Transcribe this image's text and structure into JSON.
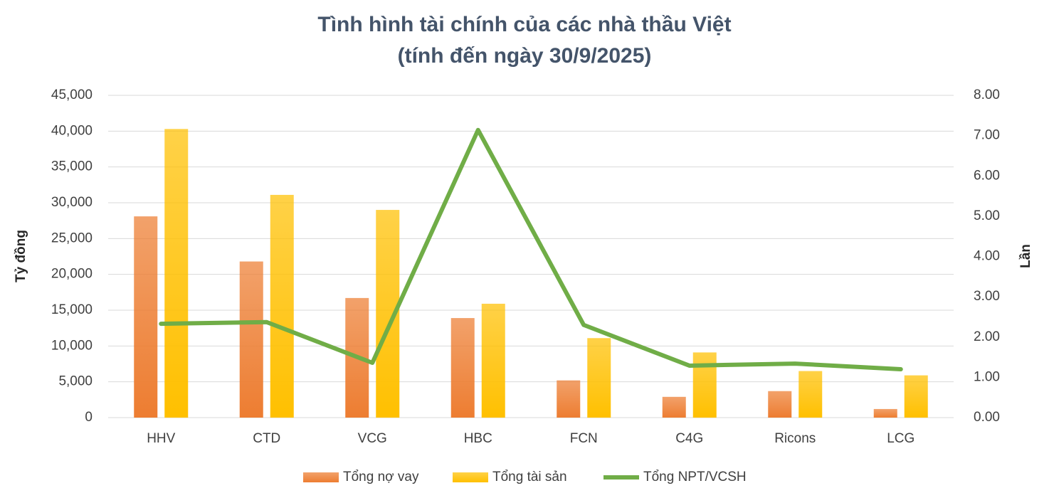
{
  "chart_data": {
    "type": "bar-line",
    "title": "Tình hình tài chính của các nhà thầu Việt",
    "subtitle": "(tính đến ngày 30/9/2025)",
    "y_label": "Tỷ đồng",
    "y2_label": "Lần",
    "categories": [
      "HHV",
      "CTD",
      "VCG",
      "HBC",
      "FCN",
      "C4G",
      "Ricons",
      "LCG"
    ],
    "series": [
      {
        "name": "Tổng nợ vay",
        "type": "bar",
        "color": "#ed7d31",
        "values": [
          28100,
          21800,
          16700,
          13900,
          5200,
          2900,
          3700,
          1200
        ]
      },
      {
        "name": "Tổng tài sản",
        "type": "bar",
        "color": "#ffc000",
        "values": [
          40300,
          31100,
          29000,
          15900,
          11100,
          9100,
          6500,
          5900
        ]
      },
      {
        "name": "Tổng NPT/VCSH",
        "type": "line",
        "axis": "y2",
        "color": "#70ad47",
        "values": [
          2.33,
          2.37,
          1.36,
          7.14,
          2.3,
          1.29,
          1.34,
          1.2
        ]
      }
    ],
    "ylim": [
      0,
      45000
    ],
    "yticks": [
      0,
      {
        "value": 5000,
        "label": "5,000"
      },
      {
        "value": 10000,
        "label": "10,000"
      },
      {
        "value": 15000,
        "label": "15,000"
      },
      {
        "value": 20000,
        "label": "20,000"
      },
      {
        "value": 25000,
        "label": "25,000"
      },
      {
        "value": 30000,
        "label": "30,000"
      },
      {
        "value": 35000,
        "label": "35,000"
      },
      {
        "value": 40000,
        "label": "40,000"
      },
      {
        "value": 45000,
        "label": "45,000"
      }
    ],
    "y2lim": [
      0,
      8
    ],
    "y2ticks": [
      {
        "value": 0,
        "label": "0.00"
      },
      {
        "value": 1,
        "label": "1.00"
      },
      {
        "value": 2,
        "label": "2.00"
      },
      {
        "value": 3,
        "label": "3.00"
      },
      {
        "value": 4,
        "label": "4.00"
      },
      {
        "value": 5,
        "label": "5.00"
      },
      {
        "value": 6,
        "label": "6.00"
      },
      {
        "value": 7,
        "label": "7.00"
      },
      {
        "value": 8,
        "label": "8.00"
      }
    ],
    "grid": true,
    "legend": "bottom"
  }
}
